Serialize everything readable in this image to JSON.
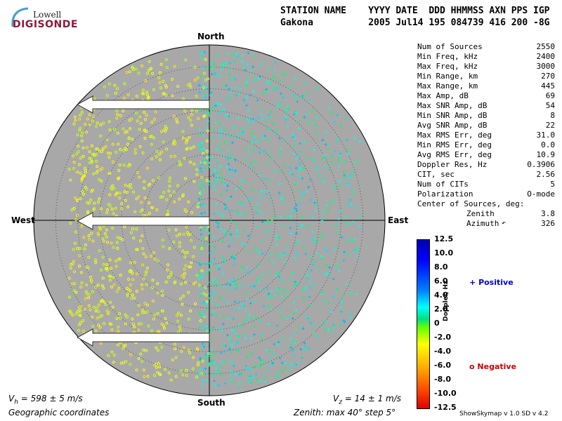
{
  "logo": {
    "line1": "Lowell",
    "line2": "DIGISONDE"
  },
  "header": {
    "labels": "STATION NAME    YYYY DATE  DDD HHMMSS AXN PPS IGP",
    "values": "Gakona          2005 Jul14 195 084739 416 200 -8G"
  },
  "plot": {
    "north": "North",
    "south": "South",
    "east": "East",
    "west": "West",
    "background": "#a8a8a8"
  },
  "stats": [
    {
      "label": "Num of Sources",
      "value": "2550"
    },
    {
      "label": "Min Freq, kHz",
      "value": "2400"
    },
    {
      "label": "Max Freq, kHz",
      "value": "3000"
    },
    {
      "label": "Min Range, km",
      "value": "270"
    },
    {
      "label": "Max Range, km",
      "value": "445"
    },
    {
      "label": "Max Amp, dB",
      "value": "69"
    },
    {
      "label": "Max SNR Amp, dB",
      "value": "54"
    },
    {
      "label": "Min SNR Amp, dB",
      "value": "8"
    },
    {
      "label": "Avg SNR Amp, dB",
      "value": "22"
    },
    {
      "label": "Max RMS Err, deg",
      "value": "31.0"
    },
    {
      "label": "Min RMS Err, deg",
      "value": "0.0"
    },
    {
      "label": "Avg RMS Err, deg",
      "value": "10.9"
    },
    {
      "label": "Doppler Res, Hz",
      "value": "0.3906"
    },
    {
      "label": "CIT, sec",
      "value": "2.56"
    },
    {
      "label": "Num of CITs",
      "value": "5"
    },
    {
      "label": "Polarization",
      "value": "O-mode"
    }
  ],
  "center": {
    "title": "Center of Sources, deg:",
    "zenith_label": "Zenith",
    "zenith_value": "3.8",
    "azimuth_label": "Azimuth",
    "azimuth_value": "326"
  },
  "colorbar": {
    "ticks": [
      "12.5",
      "10.0",
      "8.0",
      "6.0",
      "4.0",
      "2.0",
      "0",
      "-2.0",
      "-4.0",
      "-6.0",
      "-8.0",
      "-10.0",
      "-12.5"
    ],
    "axis_label": "Doppler, Hz",
    "positive_label": "Positive",
    "negative_label": "Negative",
    "positive_color": "#0000cc",
    "negative_color": "#cc0000"
  },
  "footer": {
    "vh_prefix": "V",
    "vh_sub": "h",
    "vh_text": " = 598 ± 5 m/s",
    "vz_prefix": "V",
    "vz_sub": "z",
    "vz_text": " = 14 ± 1 m/s",
    "coords": "Geographic coordinates",
    "zenith": "Zenith: max 40°  step 5°",
    "version": "ShowSkymap v 1.0   SD v 4.2"
  }
}
